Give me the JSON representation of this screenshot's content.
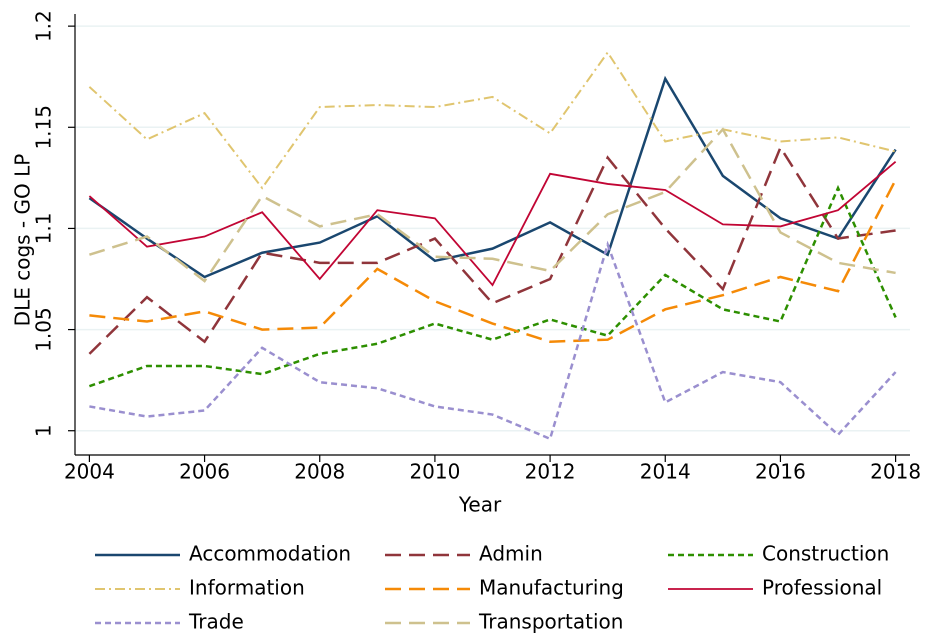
{
  "chart_data": {
    "type": "line",
    "x_label": "Year",
    "y_label": "DLE cogs - GO LP",
    "x": [
      2004,
      2005,
      2006,
      2007,
      2008,
      2009,
      2010,
      2011,
      2012,
      2013,
      2014,
      2015,
      2016,
      2017,
      2018
    ],
    "xlim": [
      2003.75,
      2018.25
    ],
    "xticks": [
      2004,
      2006,
      2008,
      2010,
      2012,
      2014,
      2016,
      2018
    ],
    "ylim": [
      0.988,
      1.206
    ],
    "yticks": [
      1,
      1.05,
      1.1,
      1.15,
      1.2
    ],
    "grid": true,
    "series": [
      {
        "name": "Accommodation",
        "color": "#1a476f",
        "values": [
          1.115,
          1.095,
          1.076,
          1.088,
          1.093,
          1.106,
          1.084,
          1.09,
          1.103,
          1.087,
          1.174,
          1.126,
          1.105,
          1.095,
          1.139
        ]
      },
      {
        "name": "Admin",
        "color": "#90353b",
        "values": [
          1.038,
          1.066,
          1.044,
          1.088,
          1.083,
          1.083,
          1.095,
          1.063,
          1.075,
          1.135,
          1.1,
          1.07,
          1.14,
          1.095,
          1.099
        ]
      },
      {
        "name": "Construction",
        "color": "#2d8f00",
        "values": [
          1.022,
          1.032,
          1.032,
          1.028,
          1.038,
          1.043,
          1.053,
          1.045,
          1.055,
          1.047,
          1.077,
          1.06,
          1.054,
          1.12,
          1.056
        ]
      },
      {
        "name": "Information",
        "color": "#e0c56f",
        "values": [
          1.17,
          1.144,
          1.157,
          1.12,
          1.16,
          1.161,
          1.16,
          1.165,
          1.147,
          1.187,
          1.143,
          1.149,
          1.143,
          1.145,
          1.138
        ]
      },
      {
        "name": "Manufacturing",
        "color": "#f58a07",
        "values": [
          1.057,
          1.054,
          1.059,
          1.05,
          1.051,
          1.08,
          1.064,
          1.053,
          1.044,
          1.045,
          1.06,
          1.067,
          1.076,
          1.069,
          1.124
        ]
      },
      {
        "name": "Professional",
        "color": "#c10534",
        "values": [
          1.116,
          1.091,
          1.096,
          1.108,
          1.075,
          1.109,
          1.105,
          1.072,
          1.127,
          1.122,
          1.119,
          1.102,
          1.101,
          1.109,
          1.133
        ]
      },
      {
        "name": "Trade",
        "color": "#9a8fcf",
        "values": [
          1.012,
          1.007,
          1.01,
          1.041,
          1.024,
          1.021,
          1.012,
          1.008,
          0.996,
          1.092,
          1.014,
          1.029,
          1.024,
          0.998,
          1.029
        ]
      },
      {
        "name": "Transportation",
        "color": "#cec18e",
        "values": [
          1.087,
          1.096,
          1.074,
          1.116,
          1.101,
          1.107,
          1.086,
          1.085,
          1.079,
          1.107,
          1.118,
          1.149,
          1.098,
          1.083,
          1.078
        ]
      }
    ]
  }
}
